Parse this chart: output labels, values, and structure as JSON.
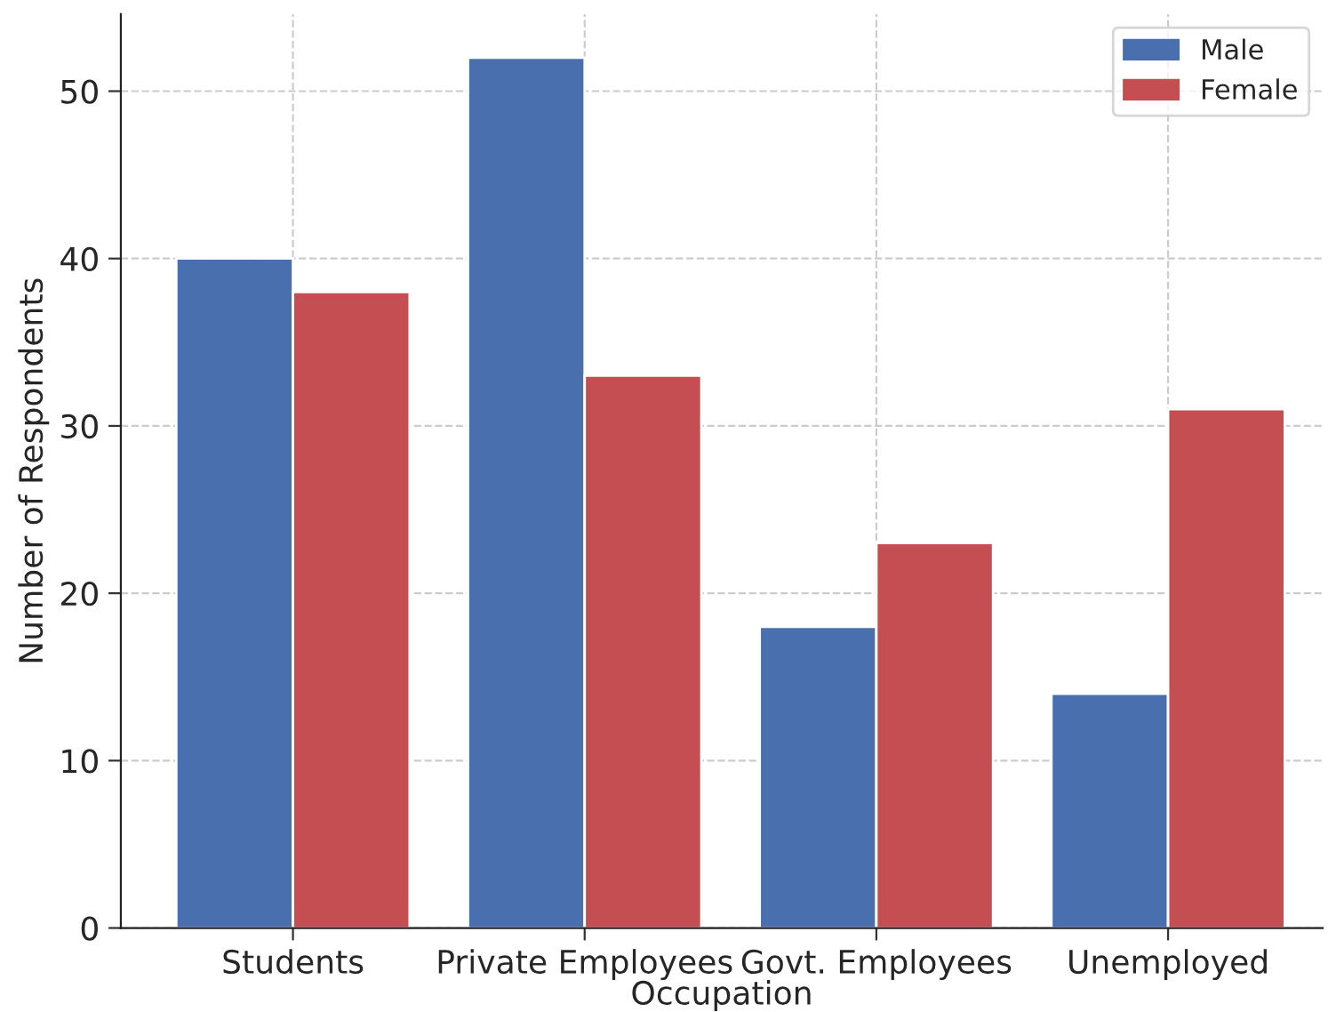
{
  "chart_data": {
    "type": "bar",
    "xlabel": "Occupation",
    "ylabel": "Number of Respondents",
    "categories": [
      "Students",
      "Private Employees",
      "Govt. Employees",
      "Unemployed"
    ],
    "series": [
      {
        "name": "Male",
        "color": "#4a6fae",
        "values": [
          40,
          52,
          18,
          14
        ]
      },
      {
        "name": "Female",
        "color": "#c44e52",
        "values": [
          38,
          33,
          23,
          31
        ]
      }
    ],
    "ylim": [
      0,
      54.6
    ],
    "yticks": [
      0,
      10,
      20,
      30,
      40,
      50
    ],
    "grid": true,
    "legend": "top right"
  }
}
